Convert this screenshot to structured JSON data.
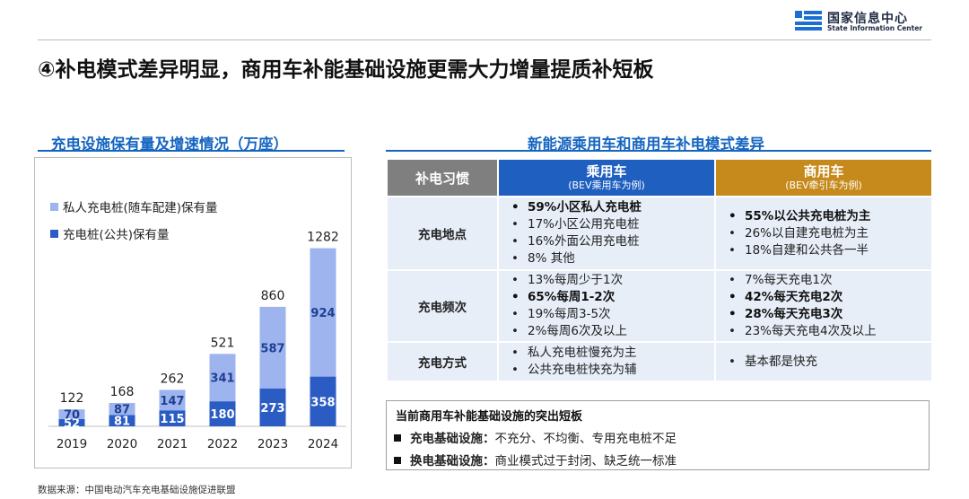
{
  "logo": {
    "name_cn": "国家信息中心",
    "name_en": "State Information Center"
  },
  "page_title": "④补电模式差异明显，商用车补能基础设施更需大力增量提质补短板",
  "left_title": "充电设施保有量及增速情况（万座）",
  "right_title": "新能源乘用车和商用车补电模式差异",
  "colors": {
    "private": "#9db4ef",
    "public": "#2a5cc4",
    "accent_blue": "#1565c0",
    "commercial": "#c58a1b",
    "habit_gray": "#7f7f7f"
  },
  "chart_data": {
    "type": "bar",
    "stacked": true,
    "categories": [
      "2019",
      "2020",
      "2021",
      "2022",
      "2023",
      "2024"
    ],
    "series": [
      {
        "name": "充电桩(公共)保有量",
        "values": [
          52,
          81,
          115,
          180,
          273,
          358
        ],
        "labels": [
          "52",
          "81",
          "115",
          "180",
          "273",
          "358"
        ]
      },
      {
        "name": "私人充电桩(随车配建)保有量",
        "values": [
          70,
          87,
          147,
          341,
          587,
          924
        ],
        "labels": [
          "70",
          "87",
          "147",
          "341",
          "587",
          "924"
        ]
      }
    ],
    "totals": [
      122,
      168,
      262,
      521,
      860,
      1282
    ],
    "total_labels": [
      "122",
      "168",
      "262",
      "521",
      "860",
      "1282"
    ],
    "legend_position": "top-left",
    "grid": false
  },
  "table": {
    "headers": {
      "habit": "补电习惯",
      "passenger": "乘用车",
      "passenger_sub": "(BEV乘用车为例)",
      "commercial": "商用车",
      "commercial_sub": "(BEV牵引车为例)"
    },
    "rows": [
      {
        "label": "充电地点",
        "passenger": [
          {
            "text": "59%小区私人充电桩",
            "bold": true
          },
          {
            "text": "17%小区公用充电桩",
            "bold": false
          },
          {
            "text": "16%外面公用充电桩",
            "bold": false
          },
          {
            "text": "8% 其他",
            "bold": false
          }
        ],
        "commercial": [
          {
            "text": "55%以公共充电桩为主",
            "bold": true
          },
          {
            "text": "26%以自建充电桩为主",
            "bold": false
          },
          {
            "text": "18%自建和公共各一半",
            "bold": false
          }
        ]
      },
      {
        "label": "充电频次",
        "passenger": [
          {
            "text": "13%每周少于1次",
            "bold": false
          },
          {
            "text": "65%每周1-2次",
            "bold": true
          },
          {
            "text": "19%每周3-5次",
            "bold": false
          },
          {
            "text": "2%每周6次及以上",
            "bold": false
          }
        ],
        "commercial": [
          {
            "text": "7%每天充电1次",
            "bold": false
          },
          {
            "text": "42%每天充电2次",
            "bold": true
          },
          {
            "text": "28%每天充电3次",
            "bold": true
          },
          {
            "text": "23%每天充电4次及以上",
            "bold": false
          }
        ]
      },
      {
        "label": "充电方式",
        "passenger": [
          {
            "text": "私人充电桩慢充为主",
            "bold": false
          },
          {
            "text": "公共充电桩快充为辅",
            "bold": false
          }
        ],
        "commercial": [
          {
            "text": "基本都是快充",
            "bold": false
          }
        ]
      }
    ]
  },
  "note": {
    "title": "当前商用车补能基础设施的突出短板",
    "items": [
      {
        "key": "充电基础设施：",
        "text": "不充分、不均衡、专用充电桩不足"
      },
      {
        "key": "换电基础设施：",
        "text": "商业模式过于封闭、缺乏统一标准"
      }
    ]
  },
  "source": "数据来源：中国电动汽车充电基础设施促进联盟"
}
